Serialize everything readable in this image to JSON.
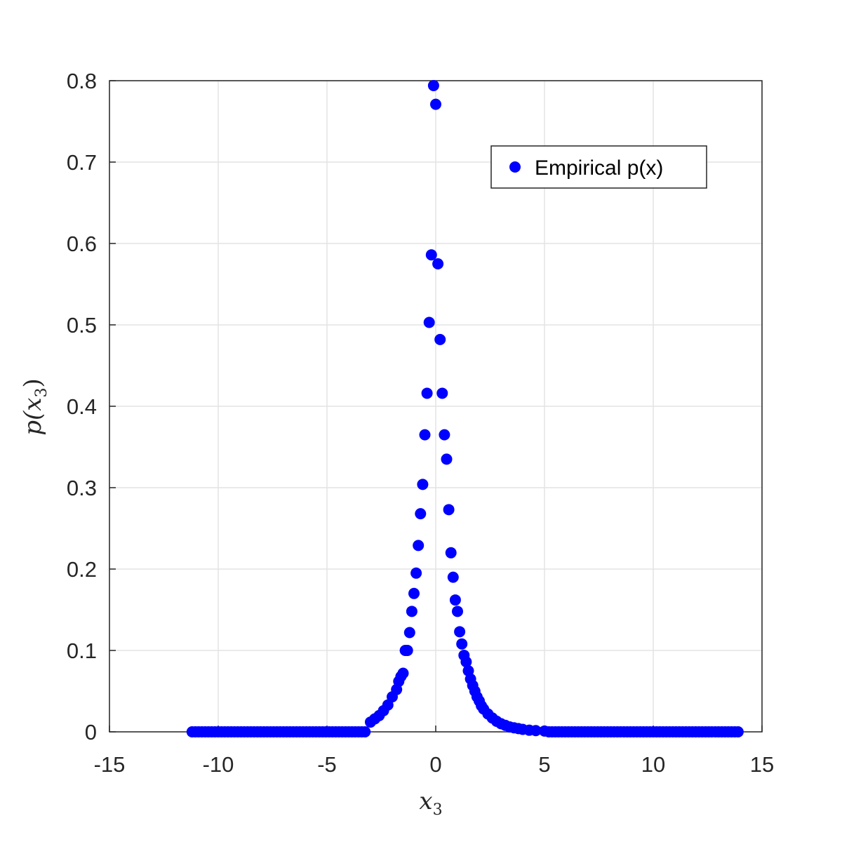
{
  "chart_data": {
    "type": "scatter",
    "title": "",
    "xlabel_main": "x",
    "xlabel_sub": "3",
    "ylabel_pre": "p(",
    "ylabel_var": "x",
    "ylabel_sub": "3",
    "ylabel_post": ")",
    "xlim": [
      -15,
      15
    ],
    "ylim": [
      0,
      0.8
    ],
    "xticks": [
      -15,
      -10,
      -5,
      0,
      5,
      10,
      15
    ],
    "xtick_labels": [
      "-15",
      "-10",
      "-5",
      "0",
      "5",
      "10",
      "15"
    ],
    "yticks": [
      0,
      0.1,
      0.2,
      0.3,
      0.4,
      0.5,
      0.6,
      0.7,
      0.8
    ],
    "ytick_labels": [
      "0",
      "0.1",
      "0.2",
      "0.3",
      "0.4",
      "0.5",
      "0.6",
      "0.7",
      "0.8"
    ],
    "grid": true,
    "legend": {
      "position": "top-right",
      "entries": [
        "Empirical p(x)"
      ]
    },
    "marker_color": "#0000ff",
    "series": [
      {
        "name": "Empirical p(x)",
        "x": [
          -3.0,
          -2.8,
          -2.6,
          -2.4,
          -2.2,
          -2.0,
          -1.8,
          -1.7,
          -1.6,
          -1.5,
          -1.4,
          -1.3,
          -1.2,
          -1.1,
          -1.0,
          -0.9,
          -0.8,
          -0.7,
          -0.6,
          -0.5,
          -0.4,
          -0.3,
          -0.2,
          -0.1,
          0.0,
          0.1,
          0.2,
          0.3,
          0.4,
          0.5,
          0.6,
          0.7,
          0.8,
          0.9,
          1.0,
          1.1,
          1.2,
          1.3,
          1.4,
          1.5,
          1.6,
          1.7,
          1.8,
          1.9,
          2.0,
          2.1,
          2.2,
          2.4,
          2.6,
          2.8,
          3.0,
          3.2,
          3.4,
          3.6,
          3.8,
          4.0,
          4.3,
          4.6,
          5.0
        ],
        "y": [
          0.012,
          0.016,
          0.02,
          0.026,
          0.033,
          0.043,
          0.052,
          0.062,
          0.068,
          0.072,
          0.1,
          0.1,
          0.122,
          0.148,
          0.17,
          0.195,
          0.229,
          0.268,
          0.304,
          0.365,
          0.416,
          0.503,
          0.586,
          0.794,
          0.771,
          0.575,
          0.482,
          0.416,
          0.365,
          0.335,
          0.273,
          0.22,
          0.19,
          0.162,
          0.148,
          0.123,
          0.108,
          0.094,
          0.086,
          0.075,
          0.065,
          0.057,
          0.05,
          0.043,
          0.038,
          0.032,
          0.028,
          0.022,
          0.017,
          0.013,
          0.01,
          0.008,
          0.006,
          0.005,
          0.004,
          0.003,
          0.002,
          0.0015,
          0.001
        ]
      }
    ],
    "tail_segments": [
      {
        "x_start": -11.2,
        "x_end": -3.2,
        "step": 0.15
      },
      {
        "x_start": 5.2,
        "x_end": 14.0,
        "step": 0.15
      }
    ]
  }
}
